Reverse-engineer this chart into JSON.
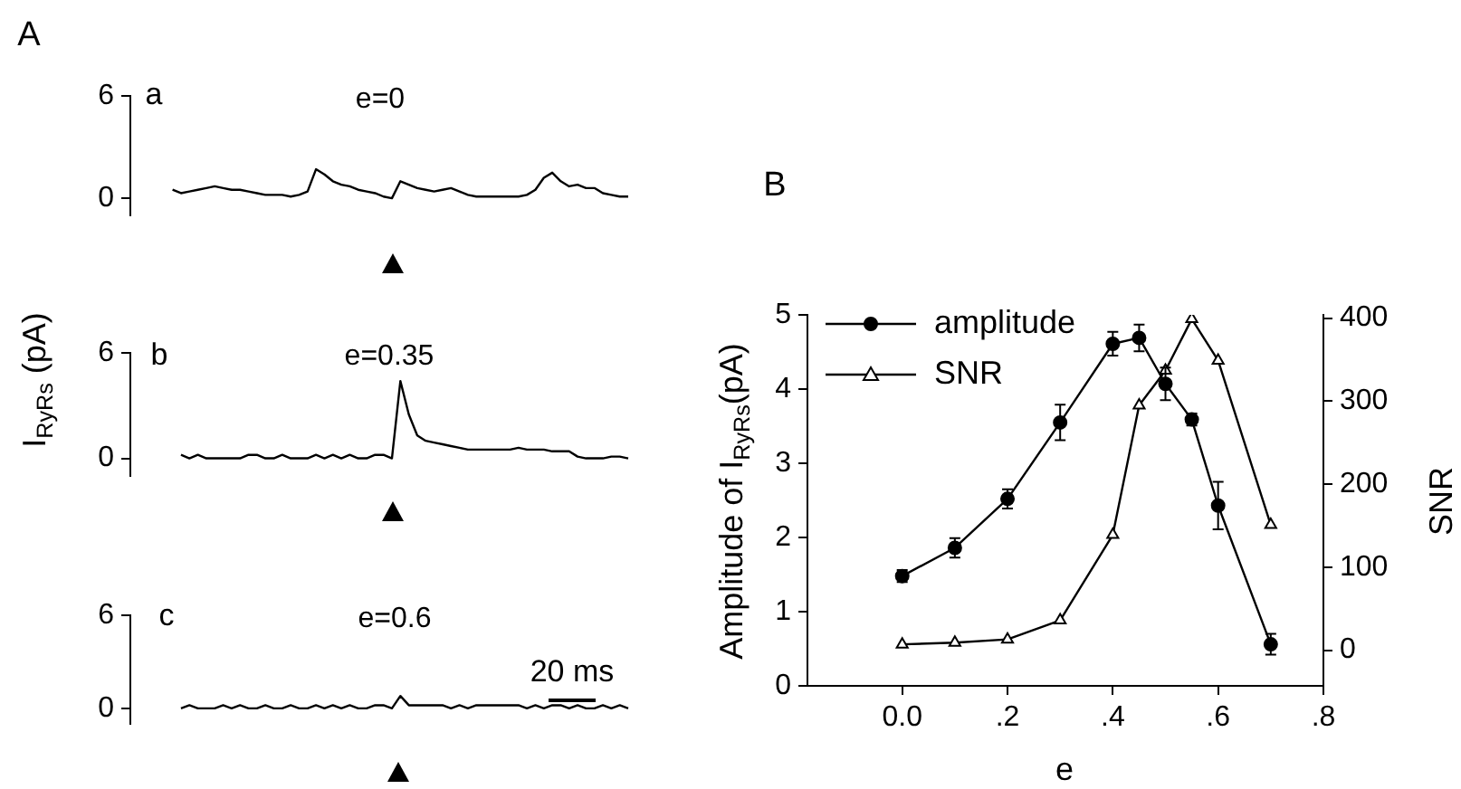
{
  "chart_data": [
    {
      "type": "line",
      "title": "e=0",
      "annotations": [
        "A",
        "a"
      ],
      "tick_labels": "y",
      "categories": [
        null,
        null,
        null,
        null,
        null,
        null,
        null,
        null,
        null,
        null,
        null,
        null,
        null,
        null,
        null,
        null,
        null,
        null,
        null,
        null,
        null,
        null,
        null,
        null,
        null,
        null,
        null,
        null,
        null,
        null,
        null,
        null,
        null,
        null,
        null,
        null,
        null,
        null,
        null,
        null,
        null,
        null,
        null,
        null,
        null,
        null,
        null,
        null,
        null,
        null,
        null,
        null,
        null,
        null,
        null,
        null,
        null,
        null,
        null,
        null
      ],
      "series": [
        {
          "color": "#000000",
          "values": [
            null,
            null,
            null,
            null,
            null,
            0.5,
            0.3,
            0.4,
            0.5,
            0.6,
            0.7,
            0.6,
            0.5,
            0.5,
            0.4,
            0.3,
            0.2,
            0.2,
            0.2,
            0.1,
            0.2,
            0.4,
            1.7,
            1.4,
            1.0,
            0.8,
            0.7,
            0.5,
            0.4,
            0.3,
            0.1,
            0,
            1.0,
            0.8,
            0.6,
            0.5,
            0.4,
            0.5,
            0.6,
            0.4,
            0.2,
            0.1,
            0.1,
            0.1,
            0.1,
            0.1,
            0.1,
            0.2,
            0.5,
            1.2,
            1.5,
            1.0,
            0.7,
            0.8,
            0.6,
            0.6,
            0.3,
            0.2,
            0.1,
            0.1
          ]
        }
      ],
      "ylim": [
        -1,
        6
      ],
      "yticks": [
        0,
        6
      ]
    },
    {
      "type": "line",
      "title": "e=0.35",
      "ylabel": "I$_{RyRs}$ (pA)",
      "annotations": [
        "b"
      ],
      "tick_labels": "y",
      "categories": [
        null,
        null,
        null,
        null,
        null,
        null,
        null,
        null,
        null,
        null,
        null,
        null,
        null,
        null,
        null,
        null,
        null,
        null,
        null,
        null,
        null,
        null,
        null,
        null,
        null,
        null,
        null,
        null,
        null,
        null,
        null,
        null,
        null,
        null,
        null,
        null,
        null,
        null,
        null,
        null,
        null,
        null,
        null,
        null,
        null,
        null,
        null,
        null,
        null,
        null,
        null,
        null,
        null,
        null,
        null,
        null,
        null,
        null,
        null,
        null
      ],
      "series": [
        {
          "color": "#000000",
          "values": [
            null,
            null,
            null,
            null,
            null,
            null,
            0.2,
            0,
            0.2,
            0,
            0,
            0,
            0,
            0,
            0.2,
            0.2,
            0,
            0,
            0.2,
            0,
            0,
            0,
            0.2,
            0,
            0.2,
            0,
            0.2,
            0,
            0,
            0.2,
            0.2,
            0,
            4.4,
            2.5,
            1.3,
            1.0,
            0.9,
            0.8,
            0.7,
            0.6,
            0.5,
            0.5,
            0.5,
            0.5,
            0.5,
            0.5,
            0.6,
            0.5,
            0.5,
            0.5,
            0.4,
            0.4,
            0.4,
            0.1,
            0,
            0,
            0,
            0.1,
            0.1,
            0
          ]
        }
      ],
      "ylim": [
        -1,
        6
      ],
      "yticks": [
        0,
        6
      ]
    },
    {
      "type": "line",
      "title": "e=0.6",
      "annotations": [
        "20 ms",
        "c"
      ],
      "tick_labels": "y",
      "categories": [
        null,
        null,
        null,
        null,
        null,
        null,
        null,
        null,
        null,
        null,
        null,
        null,
        null,
        null,
        null,
        null,
        null,
        null,
        null,
        null,
        null,
        null,
        null,
        null,
        null,
        null,
        null,
        null,
        null,
        null,
        null,
        null,
        null,
        null,
        null,
        null,
        null,
        null,
        null,
        null,
        null,
        null,
        null,
        null,
        null,
        null,
        null,
        null,
        null,
        null,
        null,
        null,
        null,
        null,
        null,
        null,
        null,
        null,
        null,
        null
      ],
      "series": [
        {
          "color": "#000000",
          "values": [
            null,
            null,
            null,
            null,
            null,
            null,
            0,
            0.2,
            0,
            0,
            0,
            0.2,
            0,
            0.2,
            0,
            0,
            0.2,
            0,
            0,
            0.2,
            0,
            0,
            0.2,
            0,
            0.2,
            0,
            0.2,
            0,
            0,
            0.2,
            0.2,
            0,
            0.8,
            0.2,
            0.2,
            0.2,
            0.2,
            0.2,
            0,
            0.2,
            0,
            0.2,
            0.2,
            0.2,
            0.2,
            0.2,
            0.2,
            0,
            0.2,
            0,
            0.2,
            0.2,
            0,
            0.2,
            0,
            0,
            0.2,
            0,
            0.2,
            0
          ]
        }
      ],
      "ylim": [
        -1,
        6
      ],
      "yticks": [
        0,
        6
      ]
    },
    {
      "type": "line",
      "xlabel": "e",
      "ylabel": "Amplitude of I$_{RyRs}$(pA)",
      "y2label": "SNR",
      "annotations": [
        "B"
      ],
      "legend": "top left",
      "x": [
        0,
        0.1,
        0.2,
        0.3,
        0.4,
        0.45,
        0.5,
        0.55,
        0.6,
        0.7
      ],
      "series": [
        {
          "name": "amplitude",
          "color": "#000000",
          "marker": "circle",
          "values": [
            1.48,
            1.86,
            2.52,
            3.55,
            4.61,
            4.69,
            4.07,
            3.59,
            2.43,
            0.56
          ],
          "errors": [
            0.08,
            0.13,
            0.13,
            0.24,
            0.16,
            0.18,
            0.22,
            0.08,
            0.32,
            0.14
          ]
        },
        {
          "name": "SNR",
          "color": "#000000",
          "marker": "triangle",
          "axis": "y2",
          "values": [
            7,
            9,
            13,
            36,
            139,
            295,
            337,
            399,
            349,
            151
          ]
        }
      ],
      "xlim": [
        -0.18,
        0.8
      ],
      "xticks": [
        {
          "value": 0,
          "label": "0.0"
        },
        {
          "value": 0.2,
          "label": ".2"
        },
        {
          "value": 0.4,
          "label": ".4"
        },
        {
          "value": 0.6,
          "label": ".6"
        },
        {
          "value": 0.8,
          "label": ".8"
        }
      ],
      "ylim": [
        0,
        5
      ],
      "yticks": [
        0,
        1,
        2,
        3,
        4,
        5
      ],
      "y2lim": [
        -43,
        404
      ],
      "y2ticks": [
        0,
        100,
        200,
        300,
        400
      ]
    }
  ]
}
